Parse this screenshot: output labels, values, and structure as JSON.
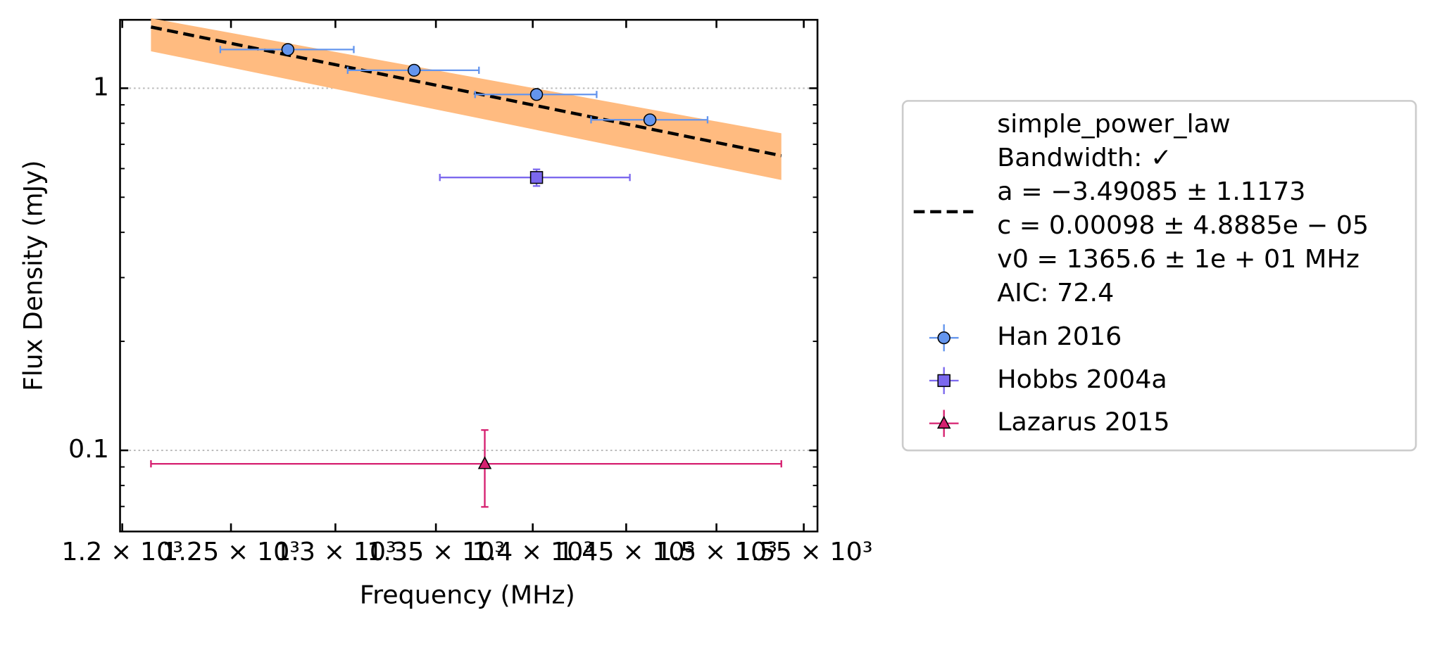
{
  "chart_data": {
    "type": "scatter",
    "xlabel": "Frequency (MHz)",
    "ylabel": "Flux Density (mJy)",
    "xscale": "log",
    "yscale": "log",
    "xlim": [
      1199,
      1558
    ],
    "ylim": [
      0.0597,
      1.545
    ],
    "xticks": [
      {
        "value": 1200,
        "label": "1.2 × 10³"
      },
      {
        "value": 1250,
        "label": "1.25 × 10³"
      },
      {
        "value": 1300,
        "label": "1.3 × 10³"
      },
      {
        "value": 1350,
        "label": "1.35 × 10³"
      },
      {
        "value": 1400,
        "label": "1.4 × 10³"
      },
      {
        "value": 1450,
        "label": "1.45 × 10³"
      },
      {
        "value": 1500,
        "label": "1.5 × 10³"
      },
      {
        "value": 1550,
        "label": "1.55 × 10³"
      }
    ],
    "yticks": [
      {
        "value": 0.1,
        "label": "0.1"
      },
      1
    ],
    "yminorticks": [
      0.07,
      0.08,
      0.09,
      0.2,
      0.3,
      0.4,
      0.5,
      0.6,
      0.7,
      0.8,
      0.9
    ],
    "grid": true,
    "legend": "outside right",
    "fit": {
      "label": [
        "simple_power_law",
        "Bandwidth: ✓",
        "a = −3.49085 ± 1.1173",
        "c = 0.00098 ± 4.8885e − 05",
        "v0 = 1365.6 ± 1e + 01 MHz",
        "AIC: 72.4"
      ],
      "color": "#000000",
      "band_color": "#ffbb80",
      "x": [
        1213,
        1537
      ],
      "values": [
        1.476,
        0.651
      ],
      "lower": [
        1.265,
        0.558
      ],
      "upper": [
        1.56,
        0.751
      ]
    },
    "series": [
      {
        "name": "Han 2016",
        "color": "#6495ed",
        "marker": "circle",
        "x": [
          1277,
          1339,
          1402,
          1463
        ],
        "values": [
          1.279,
          1.121,
          0.961,
          0.818
        ],
        "xerr": [
          32,
          33,
          32,
          32
        ]
      },
      {
        "name": "Hobbs 2004a",
        "color": "#7b68ee",
        "marker": "square",
        "x": [
          1402
        ],
        "values": [
          0.567
        ],
        "xerr": [
          50
        ],
        "yerr": [
          0.03
        ]
      },
      {
        "name": "Lazarus 2015",
        "color": "#d62070",
        "marker": "triangle",
        "x": [
          1375
        ],
        "values": [
          0.0918
        ],
        "xerr": [
          162
        ],
        "yerr": [
          0.022
        ]
      }
    ]
  }
}
